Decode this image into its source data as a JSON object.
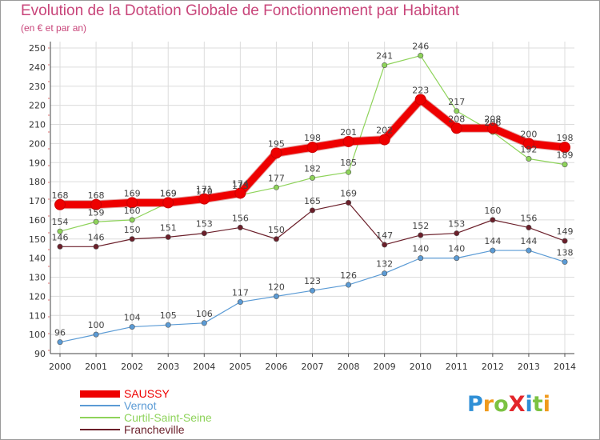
{
  "header": {
    "title": "Evolution de la Dotation Globale de Fonctionnement par Habitant",
    "subtitle": "(en € et par an)"
  },
  "logo": {
    "text": "ProXiti",
    "letters": [
      "P",
      "r",
      "o",
      "X",
      "i",
      "t",
      "i"
    ],
    "colors": [
      "#2f8fd6",
      "#f09a1c",
      "#7bc242",
      "#e3262b",
      "#2f8fd6",
      "#7bc242",
      "#f09a1c"
    ]
  },
  "chart_data": {
    "type": "line",
    "title": "Evolution de la Dotation Globale de Fonctionnement par Habitant",
    "subtitle": "(en € et par an)",
    "xlabel": "",
    "ylabel": "",
    "x": [
      "2000",
      "2001",
      "2002",
      "2003",
      "2004",
      "2005",
      "2006",
      "2007",
      "2008",
      "2009",
      "2010",
      "2011",
      "2012",
      "2013",
      "2014"
    ],
    "ylim": [
      90,
      250
    ],
    "yticks": [
      90,
      100,
      110,
      120,
      130,
      140,
      150,
      160,
      170,
      180,
      190,
      200,
      210,
      220,
      230,
      240,
      250
    ],
    "grid": true,
    "legend_position": "bottom-left",
    "series": [
      {
        "name": "Francheville",
        "color": "#6b1f2a",
        "width": 1.2,
        "values": [
          146,
          146,
          150,
          151,
          153,
          156,
          150,
          165,
          169,
          147,
          152,
          153,
          160,
          156,
          149
        ]
      },
      {
        "name": "Vernot",
        "color": "#5b9bd5",
        "width": 1.2,
        "values": [
          96,
          100,
          104,
          105,
          106,
          117,
          120,
          123,
          126,
          132,
          140,
          140,
          144,
          144,
          138
        ]
      },
      {
        "name": "Curtil-Saint-Seine",
        "color": "#8ed35a",
        "width": 1.2,
        "values": [
          154,
          159,
          160,
          169,
          170,
          173,
          177,
          182,
          185,
          241,
          246,
          217,
          206,
          192,
          189
        ]
      },
      {
        "name": "SAUSSY",
        "color": "#ee0000",
        "width": 9,
        "values": [
          168,
          168,
          169,
          169,
          171,
          174,
          195,
          198,
          201,
          202,
          223,
          208,
          208,
          200,
          198
        ]
      }
    ],
    "legend_order": [
      "SAUSSY",
      "Vernot",
      "Curtil-Saint-Seine",
      "Francheville"
    ]
  }
}
